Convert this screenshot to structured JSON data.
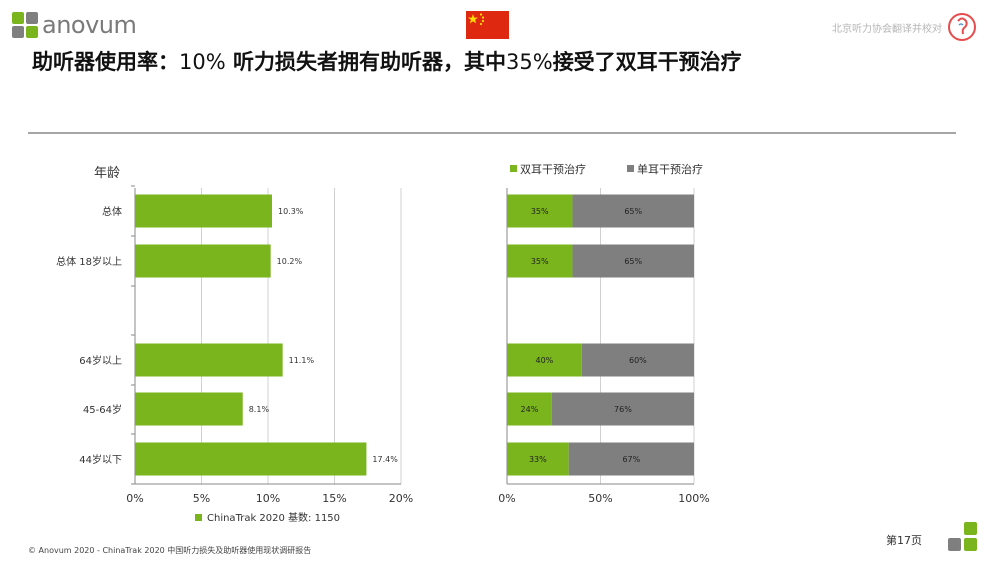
{
  "header": {
    "logo_text": "anovum",
    "org_text": "北京听力协会翻译并校对",
    "ear_icon": "ear-icon",
    "flag_icon": "china-flag-icon"
  },
  "title": {
    "part1": "助听器使用率：",
    "num1": "10%",
    "part2": " 听力损失者拥有助听器，其中",
    "num2": "35%",
    "part3": "接受了双耳干预治疗"
  },
  "colors": {
    "green": "#7ab51d",
    "gray": "#7f7f7f",
    "divider": "#a6a6a6"
  },
  "chart_data": [
    {
      "type": "bar",
      "orientation": "horizontal",
      "title": "年龄",
      "categories": [
        "总体",
        "总体 18岁以上",
        "64岁以上",
        "45-64岁",
        "44岁以下"
      ],
      "values": [
        10.3,
        10.2,
        11.1,
        8.1,
        17.4
      ],
      "value_labels": [
        "10.3%",
        "10.2%",
        "11.1%",
        "8.1%",
        "17.4%"
      ],
      "xlim": [
        0,
        20
      ],
      "x_ticks": [
        "0%",
        "5%",
        "10%",
        "15%",
        "20%"
      ],
      "grid": true,
      "legend": [
        {
          "name": "ChinaTrak 2020 基数: 1150",
          "color": "#7ab51d"
        }
      ],
      "legend_position": "bottom"
    },
    {
      "type": "bar",
      "orientation": "horizontal",
      "stacked": true,
      "categories": [
        "总体",
        "总体 18岁以上",
        "64岁以上",
        "45-64岁",
        "44岁以下"
      ],
      "series": [
        {
          "name": "双耳干预治疗",
          "color": "#7ab51d",
          "values": [
            35,
            35,
            40,
            24,
            33
          ],
          "labels": [
            "35%",
            "35%",
            "40%",
            "24%",
            "33%"
          ]
        },
        {
          "name": "单耳干预治疗",
          "color": "#7f7f7f",
          "values": [
            65,
            65,
            60,
            76,
            67
          ],
          "labels": [
            "65%",
            "65%",
            "60%",
            "76%",
            "67%"
          ]
        }
      ],
      "xlim": [
        0,
        100
      ],
      "x_ticks": [
        "0%",
        "50%",
        "100%"
      ],
      "grid": true,
      "legend_position": "top"
    }
  ],
  "footer": {
    "copyright": "© Anovum 2020 - ChinaTrak 2020 中国听力损失及助听器使用现状调研报告",
    "page": "第17页"
  }
}
